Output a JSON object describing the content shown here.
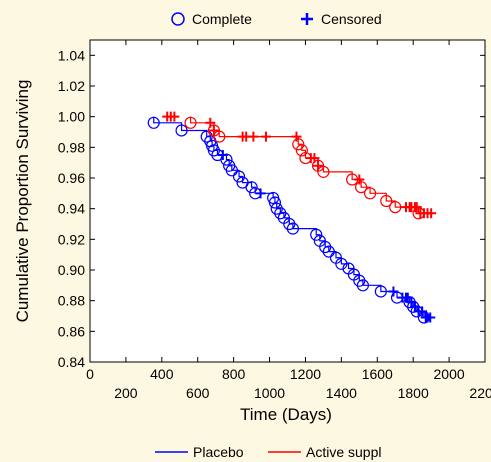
{
  "chart_data": {
    "type": "line",
    "xlabel": "Time (Days)",
    "ylabel": "Cumulative Proportion Surviving",
    "xlim": [
      0,
      2200
    ],
    "ylim": [
      0.84,
      1.05
    ],
    "x_ticks": [
      "0",
      "200",
      "400",
      "600",
      "800",
      "1000",
      "1200",
      "1400",
      "1600",
      "1800",
      "2000",
      "2200"
    ],
    "x_ticks_row": [
      {
        "value": 0,
        "label": "0",
        "row": 0
      },
      {
        "value": 200,
        "label": "200",
        "row": 1
      },
      {
        "value": 400,
        "label": "400",
        "row": 0
      },
      {
        "value": 600,
        "label": "600",
        "row": 1
      },
      {
        "value": 800,
        "label": "800",
        "row": 0
      },
      {
        "value": 1000,
        "label": "1000",
        "row": 1
      },
      {
        "value": 1200,
        "label": "1200",
        "row": 0
      },
      {
        "value": 1400,
        "label": "1400",
        "row": 1
      },
      {
        "value": 1600,
        "label": "1600",
        "row": 0
      },
      {
        "value": 1800,
        "label": "1800",
        "row": 1
      },
      {
        "value": 2000,
        "label": "2000",
        "row": 0
      },
      {
        "value": 2200,
        "label": "2200",
        "row": 1
      }
    ],
    "y_ticks": [
      "0.84",
      "0.86",
      "0.88",
      "0.90",
      "0.92",
      "0.94",
      "0.96",
      "0.98",
      "1.00",
      "1.02",
      "1.04"
    ],
    "grid": false,
    "marker_legend": [
      {
        "label": "Complete",
        "marker": "circle"
      },
      {
        "label": "Censored",
        "marker": "plus"
      }
    ],
    "series": [
      {
        "name": "Placebo",
        "color": "#0000ff",
        "steps": [
          [
            0,
            1.0
          ],
          [
            355,
            0.996
          ],
          [
            510,
            0.991
          ],
          [
            650,
            0.987
          ],
          [
            670,
            0.984
          ],
          [
            680,
            0.981
          ],
          [
            690,
            0.978
          ],
          [
            710,
            0.975
          ],
          [
            760,
            0.972
          ],
          [
            775,
            0.968
          ],
          [
            790,
            0.965
          ],
          [
            830,
            0.961
          ],
          [
            850,
            0.957
          ],
          [
            900,
            0.954
          ],
          [
            920,
            0.95
          ],
          [
            1020,
            0.947
          ],
          [
            1030,
            0.944
          ],
          [
            1040,
            0.94
          ],
          [
            1060,
            0.937
          ],
          [
            1080,
            0.934
          ],
          [
            1110,
            0.93
          ],
          [
            1130,
            0.927
          ],
          [
            1260,
            0.923
          ],
          [
            1280,
            0.919
          ],
          [
            1310,
            0.915
          ],
          [
            1330,
            0.912
          ],
          [
            1370,
            0.908
          ],
          [
            1400,
            0.904
          ],
          [
            1440,
            0.901
          ],
          [
            1470,
            0.897
          ],
          [
            1500,
            0.893
          ],
          [
            1520,
            0.89
          ],
          [
            1620,
            0.886
          ],
          [
            1710,
            0.882
          ],
          [
            1780,
            0.879
          ],
          [
            1800,
            0.876
          ],
          [
            1820,
            0.873
          ],
          [
            1860,
            0.869
          ],
          [
            1900,
            0.869
          ]
        ],
        "complete_x": [
          355,
          510,
          650,
          670,
          680,
          690,
          710,
          760,
          775,
          790,
          830,
          850,
          900,
          920,
          1020,
          1030,
          1040,
          1060,
          1080,
          1110,
          1130,
          1260,
          1280,
          1310,
          1330,
          1370,
          1400,
          1440,
          1470,
          1500,
          1520,
          1620,
          1710,
          1780,
          1800,
          1820,
          1860
        ],
        "censored_x": [
          740,
          950,
          1690,
          1740,
          1760,
          1770,
          1790,
          1810,
          1830,
          1850,
          1870,
          1880,
          1895
        ]
      },
      {
        "name": "Active suppl",
        "color": "#ff0000",
        "steps": [
          [
            0,
            1.0
          ],
          [
            560,
            0.996
          ],
          [
            690,
            0.991
          ],
          [
            720,
            0.987
          ],
          [
            1160,
            0.982
          ],
          [
            1180,
            0.978
          ],
          [
            1200,
            0.973
          ],
          [
            1270,
            0.968
          ],
          [
            1300,
            0.964
          ],
          [
            1460,
            0.959
          ],
          [
            1510,
            0.954
          ],
          [
            1560,
            0.95
          ],
          [
            1650,
            0.945
          ],
          [
            1700,
            0.941
          ],
          [
            1830,
            0.937
          ],
          [
            1900,
            0.937
          ]
        ],
        "complete_x": [
          560,
          690,
          720,
          1160,
          1180,
          1200,
          1270,
          1300,
          1460,
          1510,
          1560,
          1650,
          1700,
          1830
        ],
        "censored_x": [
          430,
          450,
          470,
          670,
          690,
          850,
          870,
          910,
          980,
          1150,
          1230,
          1250,
          1270,
          1500,
          1760,
          1780,
          1790,
          1810,
          1820,
          1840,
          1860,
          1880,
          1900
        ]
      }
    ]
  }
}
